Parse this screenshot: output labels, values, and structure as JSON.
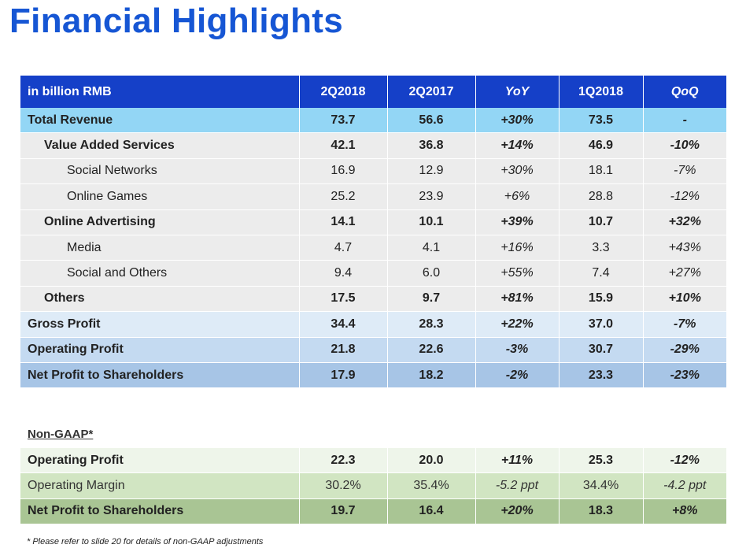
{
  "title": "Financial Highlights",
  "table": {
    "headers": [
      "in billion RMB",
      "2Q2018",
      "2Q2017",
      "YoY",
      "1Q2018",
      "QoQ"
    ],
    "rows": [
      {
        "label": "Total Revenue",
        "values": [
          "73.7",
          "56.6",
          "+30%",
          "73.5",
          "-"
        ]
      },
      {
        "label": "Value Added Services",
        "values": [
          "42.1",
          "36.8",
          "+14%",
          "46.9",
          "-10%"
        ]
      },
      {
        "label": "Social Networks",
        "values": [
          "16.9",
          "12.9",
          "+30%",
          "18.1",
          "-7%"
        ]
      },
      {
        "label": "Online Games",
        "values": [
          "25.2",
          "23.9",
          "+6%",
          "28.8",
          "-12%"
        ]
      },
      {
        "label": "Online Advertising",
        "values": [
          "14.1",
          "10.1",
          "+39%",
          "10.7",
          "+32%"
        ]
      },
      {
        "label": "Media",
        "values": [
          "4.7",
          "4.1",
          "+16%",
          "3.3",
          "+43%"
        ]
      },
      {
        "label": "Social and Others",
        "values": [
          "9.4",
          "6.0",
          "+55%",
          "7.4",
          "+27%"
        ]
      },
      {
        "label": "Others",
        "values": [
          "17.5",
          "9.7",
          "+81%",
          "15.9",
          "+10%"
        ]
      },
      {
        "label": "Gross Profit",
        "values": [
          "34.4",
          "28.3",
          "+22%",
          "37.0",
          "-7%"
        ]
      },
      {
        "label": "Operating Profit",
        "values": [
          "21.8",
          "22.6",
          "-3%",
          "30.7",
          "-29%"
        ]
      },
      {
        "label": "Net Profit to Shareholders",
        "values": [
          "17.9",
          "18.2",
          "-2%",
          "23.3",
          "-23%"
        ]
      }
    ]
  },
  "non_gaap": {
    "label": "Non-GAAP*",
    "rows": [
      {
        "label": "Operating Profit",
        "values": [
          "22.3",
          "20.0",
          "+11%",
          "25.3",
          "-12%"
        ]
      },
      {
        "label": "Operating Margin",
        "values": [
          "30.2%",
          "35.4%",
          "-5.2 ppt",
          "34.4%",
          "-4.2 ppt"
        ]
      },
      {
        "label": "Net Profit to Shareholders",
        "values": [
          "19.7",
          "16.4",
          "+20%",
          "18.3",
          "+8%"
        ]
      }
    ]
  },
  "footnote": "* Please refer to slide 20 for details of non-GAAP adjustments",
  "colors": {
    "title": "#1656d4",
    "header_bg": "#1540c8",
    "total_revenue_bg": "#93d6f5",
    "sub_row_bg": "#ececec",
    "gross_profit_bg": "#deebf7",
    "operating_profit_bg": "#c4daf1",
    "net_profit_bg": "#a7c5e6",
    "ng_operating_profit_bg": "#eef5ea",
    "ng_operating_margin_bg": "#d1e5c2",
    "ng_net_profit_bg": "#a9c594"
  }
}
